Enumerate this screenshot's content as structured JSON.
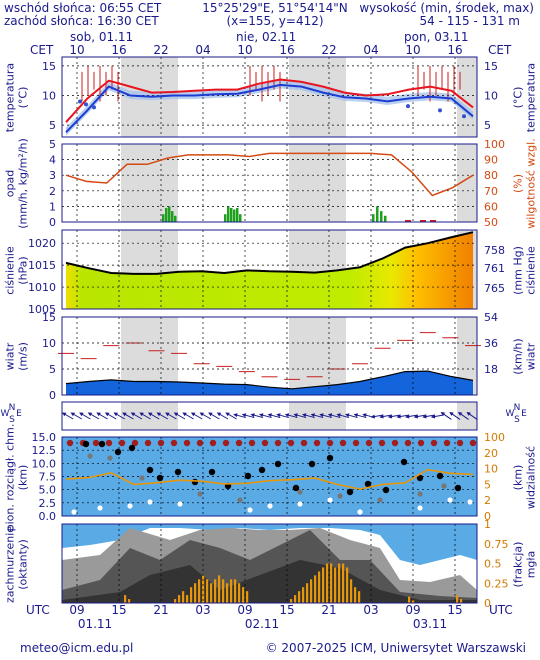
{
  "header": {
    "sunrise": "wschód słońca: 06:55 CET",
    "sunset": "zachód słońca: 16:30 CET",
    "coords": "15°25'29\"E, 51°54'14\"N",
    "grid": "(x=155, y=412)",
    "height_label": "wysokość (min, środek, max)",
    "height_values": "54 - 115 - 131 m"
  },
  "top_axis": {
    "tz_left": "CET",
    "tz_right": "CET",
    "days": [
      "sob, 01.11",
      "nie, 02.11",
      "pon, 03.11"
    ],
    "hours": [
      "10",
      "16",
      "22",
      "04",
      "10",
      "16",
      "22",
      "04",
      "10",
      "16"
    ]
  },
  "bottom_axis": {
    "tz_left": "UTC",
    "tz_right": "UTC",
    "hours": [
      "09",
      "15",
      "21",
      "03",
      "09",
      "15",
      "21",
      "03",
      "09",
      "15"
    ],
    "dates": [
      "01.11",
      "02.11",
      "03.11"
    ]
  },
  "footer": {
    "email": "meteo@icm.edu.pl",
    "copyright": "© 2007-2025 ICM, Uniwersytet Warszawski"
  },
  "colors": {
    "temp": "#e8141e",
    "dew": "#1e3cd2",
    "humidity": "#d44a12",
    "precip": "#1ea01e",
    "pressure_line": "#000000",
    "wind_max": "#c81e1e",
    "wind_fill": "#1464dc",
    "vis_fill": "#5aaae6",
    "fog": "#e8960a"
  },
  "chart_data": [
    {
      "type": "line",
      "id": "temperature",
      "left_label": "temperatura",
      "left_unit": "(°C)",
      "right_label": "temperatura",
      "right_unit": "(°C)",
      "yticks": [
        5,
        10,
        15
      ],
      "ylim": [
        3,
        16.5
      ],
      "series": [
        {
          "values": [
            5.5,
            9.5,
            12.5,
            11.5,
            10.5,
            10.6,
            10.8,
            11,
            11,
            12,
            12.7,
            12.3,
            11.5,
            10.5,
            10,
            10.2,
            11,
            11.5,
            10.8,
            8
          ]
        },
        {
          "values": [
            3.8,
            7.5,
            11.5,
            10,
            9.8,
            10,
            10,
            10.2,
            10.3,
            11,
            11.8,
            11.5,
            10.5,
            9.7,
            9.5,
            9,
            9.5,
            9.8,
            9.5,
            6.5
          ]
        }
      ]
    },
    {
      "type": "line",
      "id": "precip_humidity",
      "left_label": "opad",
      "left_unit": "(mm/h, kg/m²/h)",
      "right_label": "wilgotność wzgl.",
      "right_unit": "(%)",
      "yticks_left": [
        0,
        1,
        2,
        3,
        4,
        5
      ],
      "yticks_right": [
        50,
        60,
        70,
        80,
        90,
        100
      ],
      "series": [
        {
          "values": [
            80,
            76,
            75,
            87,
            87,
            91,
            93,
            93,
            93,
            92,
            94,
            94,
            94,
            94,
            94,
            94,
            93,
            82,
            67,
            72,
            80
          ]
        }
      ]
    },
    {
      "type": "area",
      "id": "pressure",
      "left_label": "ciśnienie",
      "left_unit": "(hPa)",
      "right_label": "ciśnienie",
      "right_unit": "(mm Hg)",
      "yticks_left": [
        1005,
        1010,
        1015,
        1020
      ],
      "yticks_right": [
        758,
        761,
        765
      ],
      "ylim": [
        1005,
        1023
      ],
      "series": [
        {
          "values": [
            1015.5,
            1014.3,
            1013.2,
            1013,
            1013,
            1013.5,
            1013.6,
            1013.2,
            1013.8,
            1013.6,
            1013.5,
            1013.3,
            1013.8,
            1014.5,
            1016.5,
            1019,
            1020,
            1021.3,
            1022.5
          ]
        }
      ]
    },
    {
      "type": "area",
      "id": "wind",
      "left_label": "wiatr",
      "left_unit": "(m/s)",
      "right_label": "wiatr",
      "right_unit": "(km/h)",
      "yticks_left": [
        0,
        5,
        10,
        15
      ],
      "yticks_right": [
        18,
        36,
        54
      ],
      "ylim": [
        0,
        15
      ],
      "series": [
        {
          "values": [
            8,
            7,
            9.5,
            10,
            8.5,
            8,
            6,
            5.5,
            4.5,
            3.5,
            3,
            3.5,
            5,
            6,
            9,
            10.5,
            12,
            11,
            9.5
          ]
        },
        {
          "values": [
            2.2,
            2.6,
            2.9,
            2.6,
            2.6,
            2.5,
            2.3,
            2.1,
            2,
            1.5,
            1.2,
            1.6,
            2,
            2.6,
            3.5,
            4.5,
            4.6,
            3.6,
            2.8
          ]
        }
      ]
    },
    {
      "type": "scatter",
      "id": "cloud_visibility",
      "left_label": "pion. rozciągł. chm.",
      "left_unit": "(km)",
      "right_label": "widzialność",
      "right_unit": "(km)",
      "yticks_left": [
        0,
        2.5,
        5,
        7.5,
        10,
        12.5,
        15
      ],
      "yticks_right": [
        0,
        2,
        5,
        10,
        20,
        100
      ],
      "series": [
        {
          "values": [
            7,
            7.3,
            8.2,
            6,
            6.3,
            6.8,
            6.6,
            6.1,
            6.2,
            6.7,
            6.9,
            7.2,
            6,
            5.1,
            6,
            6.3,
            8.8,
            8.1,
            7.9
          ]
        }
      ]
    },
    {
      "type": "area",
      "id": "clouds_fog",
      "left_label": "zachmurzenie",
      "left_unit": "(oktanty)",
      "right_label": "mgła",
      "right_unit": "(frakcja)",
      "yticks_right": [
        0,
        0.25,
        0.5,
        0.75,
        1
      ]
    }
  ]
}
